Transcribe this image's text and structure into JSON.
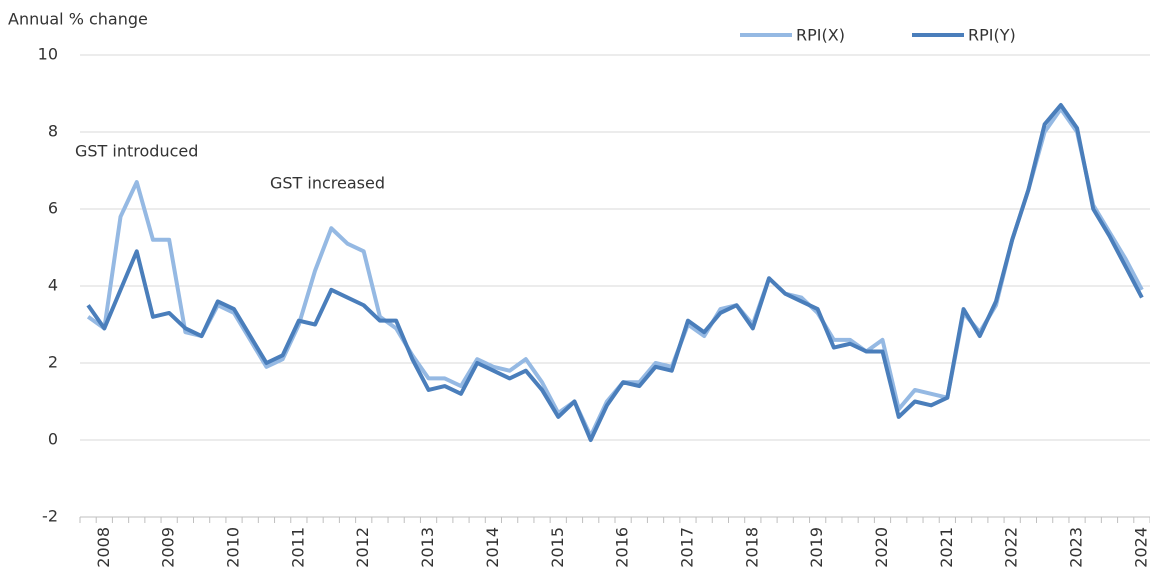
{
  "chart_data": {
    "type": "line",
    "y_label": "Annual % change",
    "annotations": [
      "GST introduced",
      "GST increased"
    ],
    "categories": [
      null,
      "2008",
      null,
      null,
      null,
      "2009",
      null,
      null,
      null,
      "2010",
      null,
      null,
      null,
      "2011",
      null,
      null,
      null,
      "2012",
      null,
      null,
      null,
      "2013",
      null,
      null,
      null,
      "2014",
      null,
      null,
      null,
      "2015",
      null,
      null,
      null,
      "2016",
      null,
      null,
      null,
      "2017",
      null,
      null,
      null,
      "2018",
      null,
      null,
      null,
      "2019",
      null,
      null,
      null,
      "2020",
      null,
      null,
      null,
      "2021",
      null,
      null,
      null,
      "2022",
      null,
      null,
      null,
      "2023",
      null,
      null,
      null,
      "2024"
    ],
    "series": [
      {
        "name": "RPI(X)",
        "color": "#95b9e3",
        "values": [
          3.2,
          2.9,
          5.8,
          6.7,
          5.2,
          5.2,
          2.8,
          2.7,
          3.5,
          3.3,
          2.6,
          1.9,
          2.1,
          3.0,
          4.4,
          5.5,
          5.1,
          4.9,
          3.2,
          2.9,
          2.2,
          1.6,
          1.6,
          1.4,
          2.1,
          1.9,
          1.8,
          2.1,
          1.5,
          0.7,
          1.0,
          0.1,
          1.0,
          1.5,
          1.5,
          2.0,
          1.9,
          3.0,
          2.7,
          3.4,
          3.5,
          3.0,
          4.2,
          3.8,
          3.7,
          3.3,
          2.6,
          2.6,
          2.3,
          2.6,
          0.8,
          1.3,
          1.2,
          1.1,
          3.3,
          2.8,
          3.5,
          5.2,
          6.5,
          8.0,
          8.6,
          8.0,
          6.1,
          5.4,
          4.7,
          3.9
        ]
      },
      {
        "name": "RPI(Y)",
        "color": "#4a7ebb",
        "values": [
          3.5,
          2.9,
          3.9,
          4.9,
          3.2,
          3.3,
          2.9,
          2.7,
          3.6,
          3.4,
          2.7,
          2.0,
          2.2,
          3.1,
          3.0,
          3.9,
          3.7,
          3.5,
          3.1,
          3.1,
          2.1,
          1.3,
          1.4,
          1.2,
          2.0,
          1.8,
          1.6,
          1.8,
          1.3,
          0.6,
          1.0,
          0.0,
          0.9,
          1.5,
          1.4,
          1.9,
          1.8,
          3.1,
          2.8,
          3.3,
          3.5,
          2.9,
          4.2,
          3.8,
          3.6,
          3.4,
          2.4,
          2.5,
          2.3,
          2.3,
          0.6,
          1.0,
          0.9,
          1.1,
          3.4,
          2.7,
          3.6,
          5.2,
          6.5,
          8.2,
          8.7,
          8.1,
          6.0,
          5.3,
          4.5,
          3.7
        ]
      }
    ],
    "ylim": [
      -2,
      10
    ],
    "yticks": [
      -2,
      0,
      2,
      4,
      6,
      8,
      10
    ],
    "grid": true,
    "legend": "top-right"
  }
}
